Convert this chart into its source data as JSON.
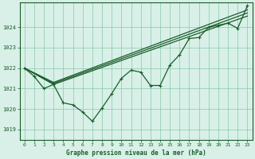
{
  "title": "Graphe pression niveau de la mer (hPa)",
  "bg_color": "#d8f0e8",
  "grid_color": "#88c8a8",
  "line_color": "#1a5c2a",
  "xlim": [
    -0.5,
    23.5
  ],
  "ylim": [
    1018.5,
    1025.2
  ],
  "yticks": [
    1019,
    1020,
    1021,
    1022,
    1023,
    1024
  ],
  "xticks": [
    0,
    1,
    2,
    3,
    4,
    5,
    6,
    7,
    8,
    9,
    10,
    11,
    12,
    13,
    14,
    15,
    16,
    17,
    18,
    19,
    20,
    21,
    22,
    23
  ],
  "line1": [
    1022.0,
    1021.6,
    1021.0,
    1021.2,
    1020.3,
    1020.2,
    1019.85,
    1019.4,
    1020.05,
    1020.75,
    1021.5,
    1021.9,
    1021.8,
    1021.15,
    1021.15,
    1022.15,
    1022.65,
    1023.45,
    1023.5,
    1024.0,
    1024.1,
    1024.2,
    1023.95,
    1025.05
  ],
  "smooth_lines": [
    {
      "x": [
        0,
        3,
        23
      ],
      "y": [
        1022.0,
        1021.2,
        1024.55
      ]
    },
    {
      "x": [
        0,
        3,
        23
      ],
      "y": [
        1022.0,
        1021.25,
        1024.7
      ]
    },
    {
      "x": [
        0,
        3,
        23
      ],
      "y": [
        1022.0,
        1021.3,
        1024.85
      ]
    }
  ]
}
